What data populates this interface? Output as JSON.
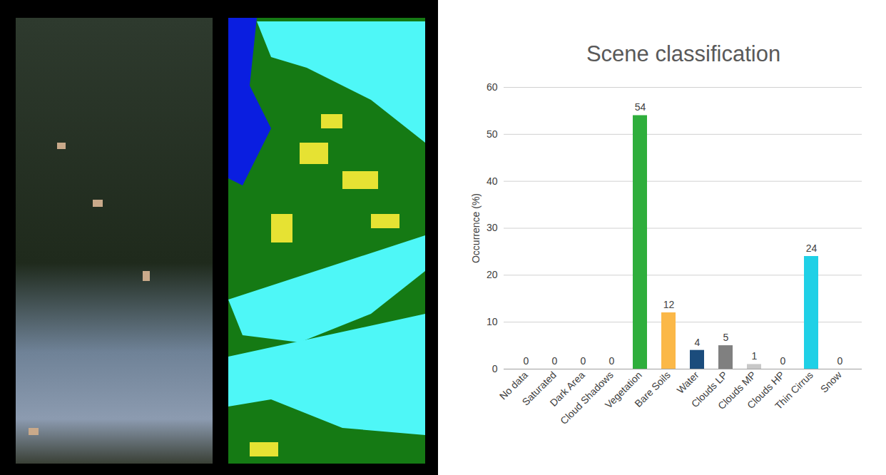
{
  "chart_data": {
    "type": "bar",
    "title": "Scene classification",
    "y_label": "Occurrence (%)",
    "categories": [
      "No data",
      "Saturated",
      "Dark Area",
      "Cloud Shadows",
      "Vegetation",
      "Bare Soils",
      "Water",
      "Clouds LP",
      "Clouds MP",
      "Clouds HP",
      "Thin Cirrus",
      "Snow"
    ],
    "values": [
      0,
      0,
      0,
      0,
      54,
      12,
      4,
      5,
      1,
      0,
      24,
      0
    ],
    "colors": [
      "#000000",
      "#ff0000",
      "#404040",
      "#7f4f1f",
      "#2fae3c",
      "#fbb848",
      "#1b4c7c",
      "#808080",
      "#c8c8c8",
      "#eeeeee",
      "#1fd0e6",
      "#ffffff"
    ],
    "ylim": [
      0,
      60
    ],
    "yticks": [
      0,
      10,
      20,
      30,
      40,
      50,
      60
    ],
    "grid": true,
    "data_labels": true
  }
}
